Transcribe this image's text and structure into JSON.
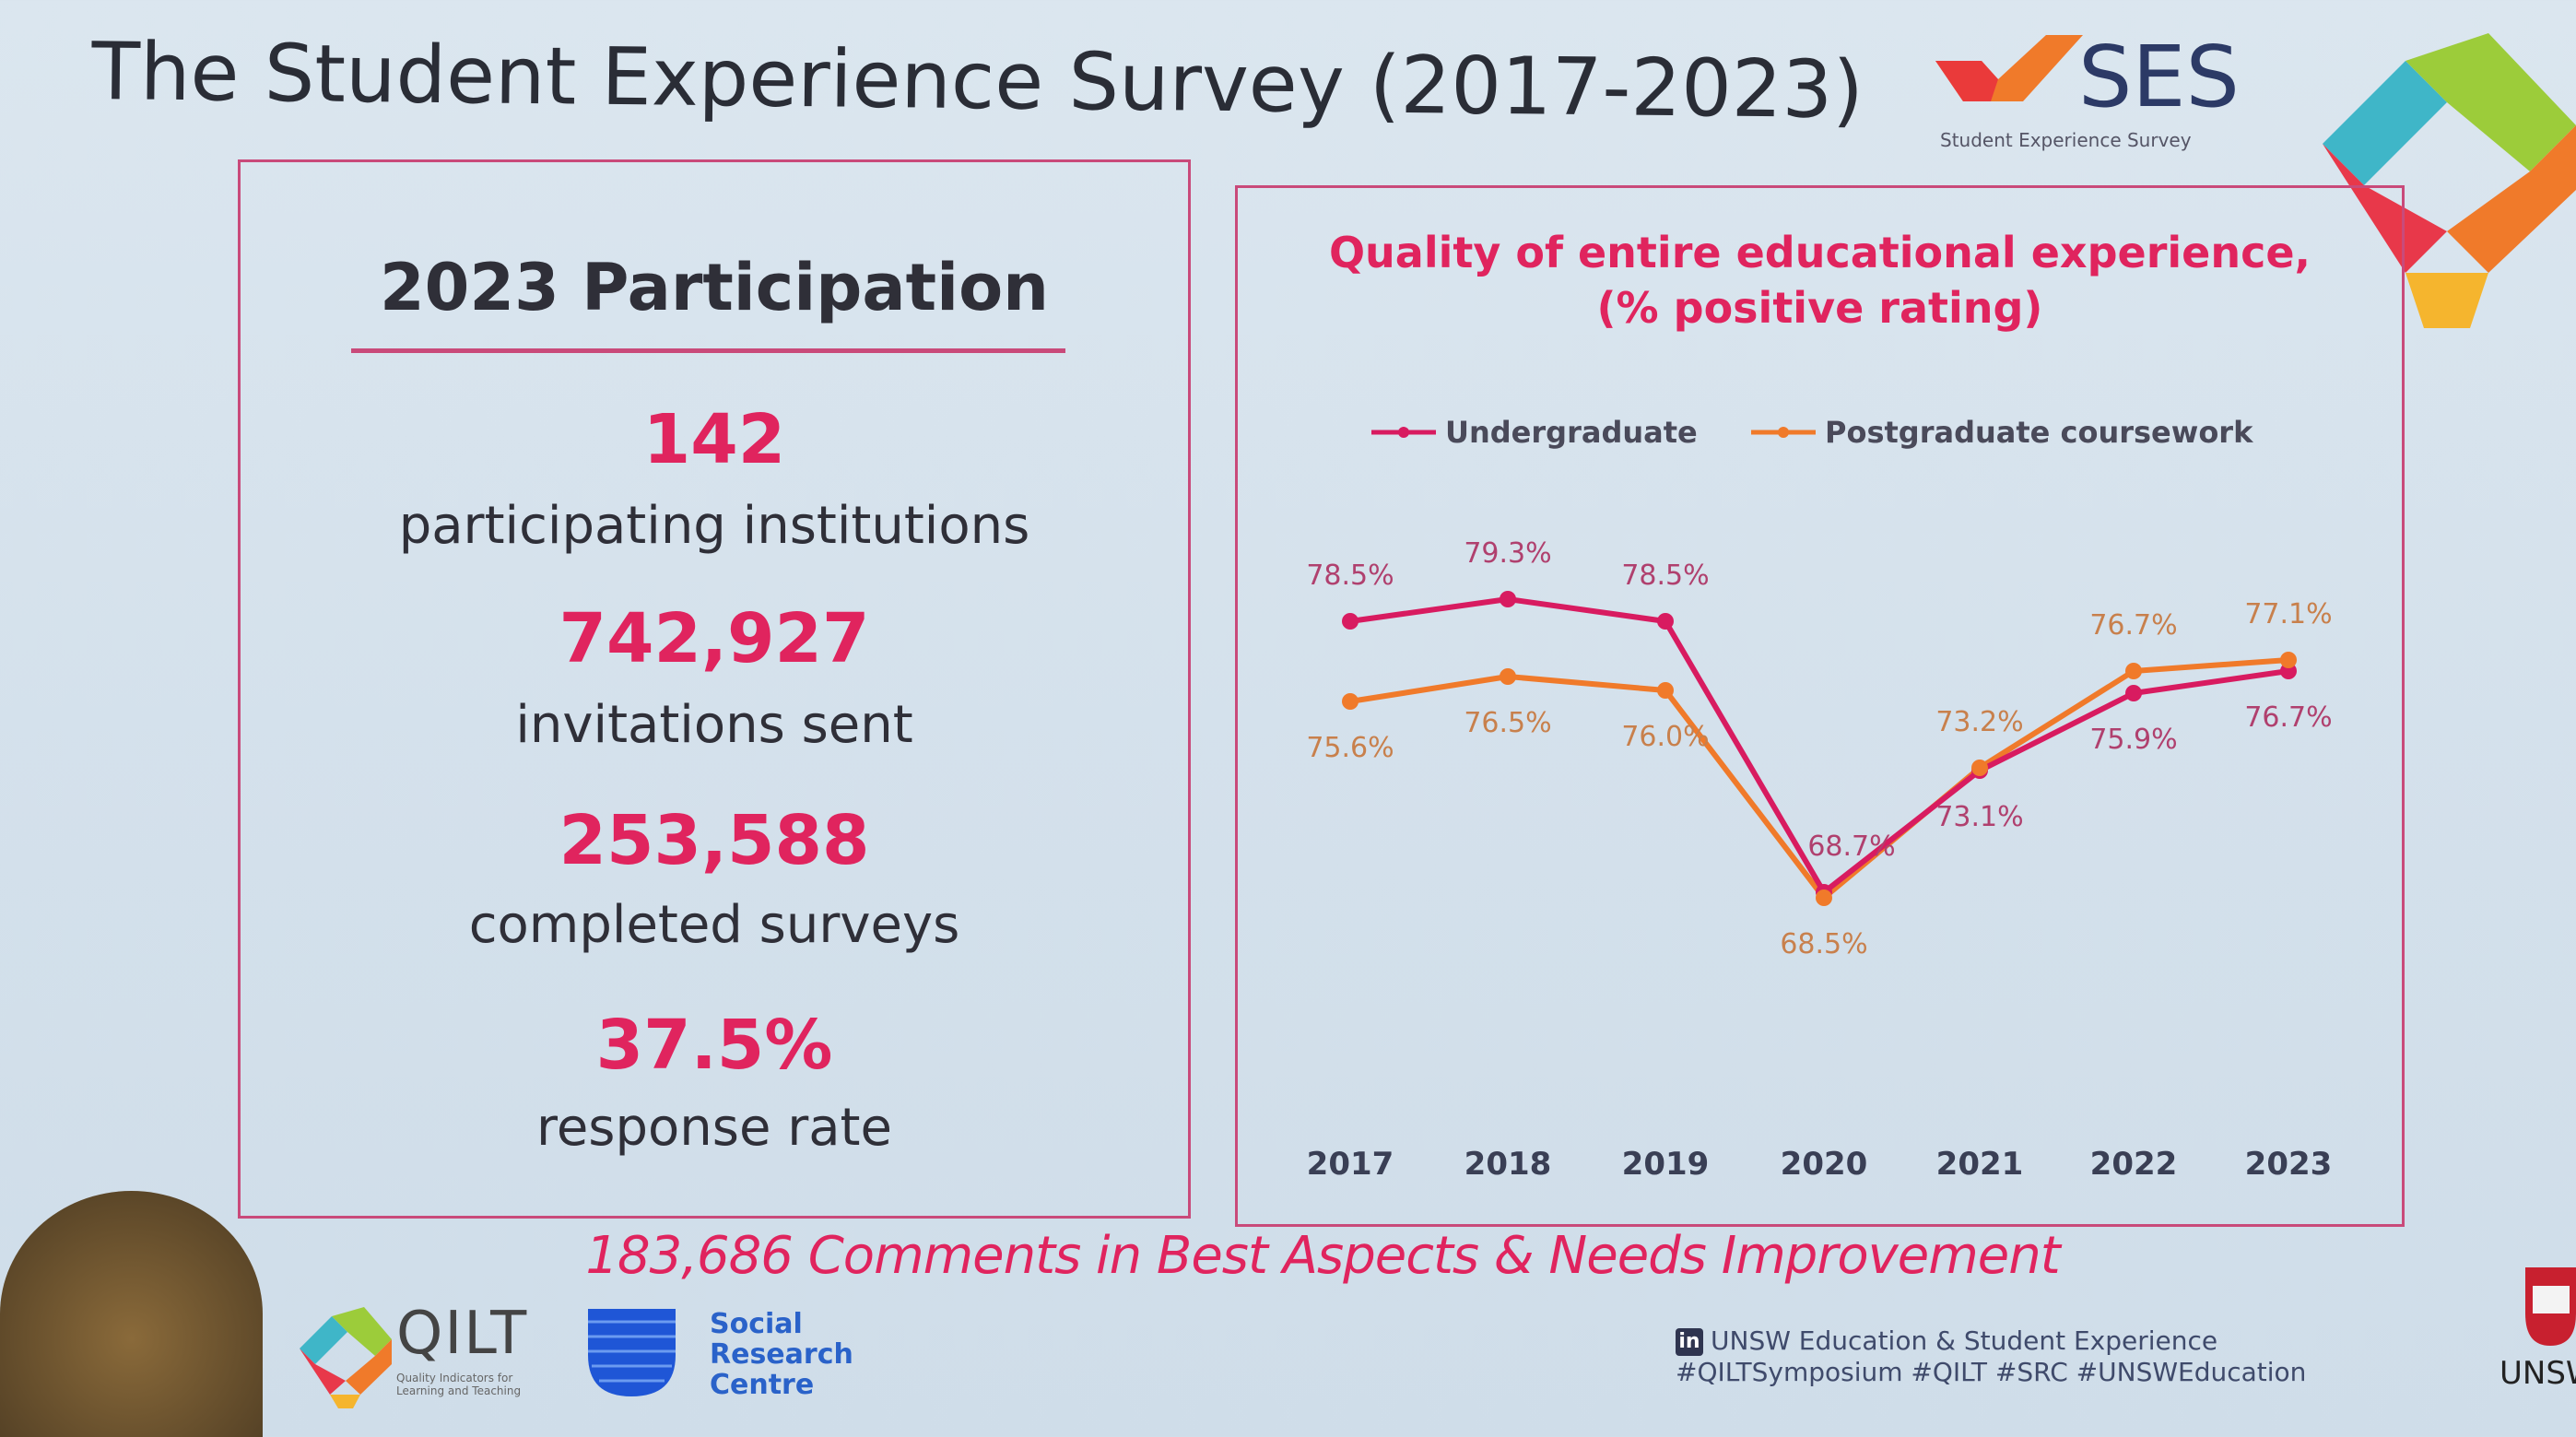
{
  "slide": {
    "title": "The Student Experience Survey (2017-2023)",
    "colors": {
      "accent_pink": "#e0245e",
      "undergraduate": "#d81b60",
      "postgraduate": "#f07a2a",
      "background": "#d6e2ec"
    }
  },
  "logos": {
    "ses": {
      "name": "SES",
      "subtitle": "Student Experience Survey"
    },
    "qilt": {
      "name": "QILT",
      "subtitle": "Quality Indicators for Learning and Teaching"
    },
    "src": {
      "lines": [
        "Social",
        "Research",
        "Centre"
      ]
    },
    "unsw": {
      "name": "UNSW"
    }
  },
  "participation": {
    "title": "2023 Participation",
    "stats": [
      {
        "value": "142",
        "label": "participating institutions"
      },
      {
        "value": "742,927",
        "label": "invitations sent"
      },
      {
        "value": "253,588",
        "label": "completed surveys"
      },
      {
        "value": "37.5%",
        "label": "response rate"
      }
    ]
  },
  "comments": "183,686 Comments in Best Aspects & Needs Improvement",
  "footer": {
    "linkedin_icon": "linkedin-icon",
    "linkedin_text": "UNSW Education & Student Experience",
    "hashtags": "#QILTSymposium #QILT #SRC #UNSWEducation"
  },
  "chart_data": {
    "type": "line",
    "title": "Quality of entire educational experience,",
    "subtitle": "(% positive rating)",
    "categories": [
      "2017",
      "2018",
      "2019",
      "2020",
      "2021",
      "2022",
      "2023"
    ],
    "series": [
      {
        "name": "Undergraduate",
        "color": "#d81b60",
        "values": [
          78.5,
          79.3,
          78.5,
          68.7,
          73.1,
          75.9,
          76.7
        ],
        "labels": [
          "78.5%",
          "79.3%",
          "78.5%",
          "68.7%",
          "73.1%",
          "75.9%",
          "76.7%"
        ]
      },
      {
        "name": "Postgraduate coursework",
        "color": "#f07a2a",
        "values": [
          75.6,
          76.5,
          76.0,
          68.5,
          73.2,
          76.7,
          77.1
        ],
        "labels": [
          "75.6%",
          "76.5%",
          "76.0%",
          "68.5%",
          "73.2%",
          "76.7%",
          "77.1%"
        ]
      }
    ],
    "legend": "top",
    "grid": false,
    "y_axis_shown": false
  }
}
